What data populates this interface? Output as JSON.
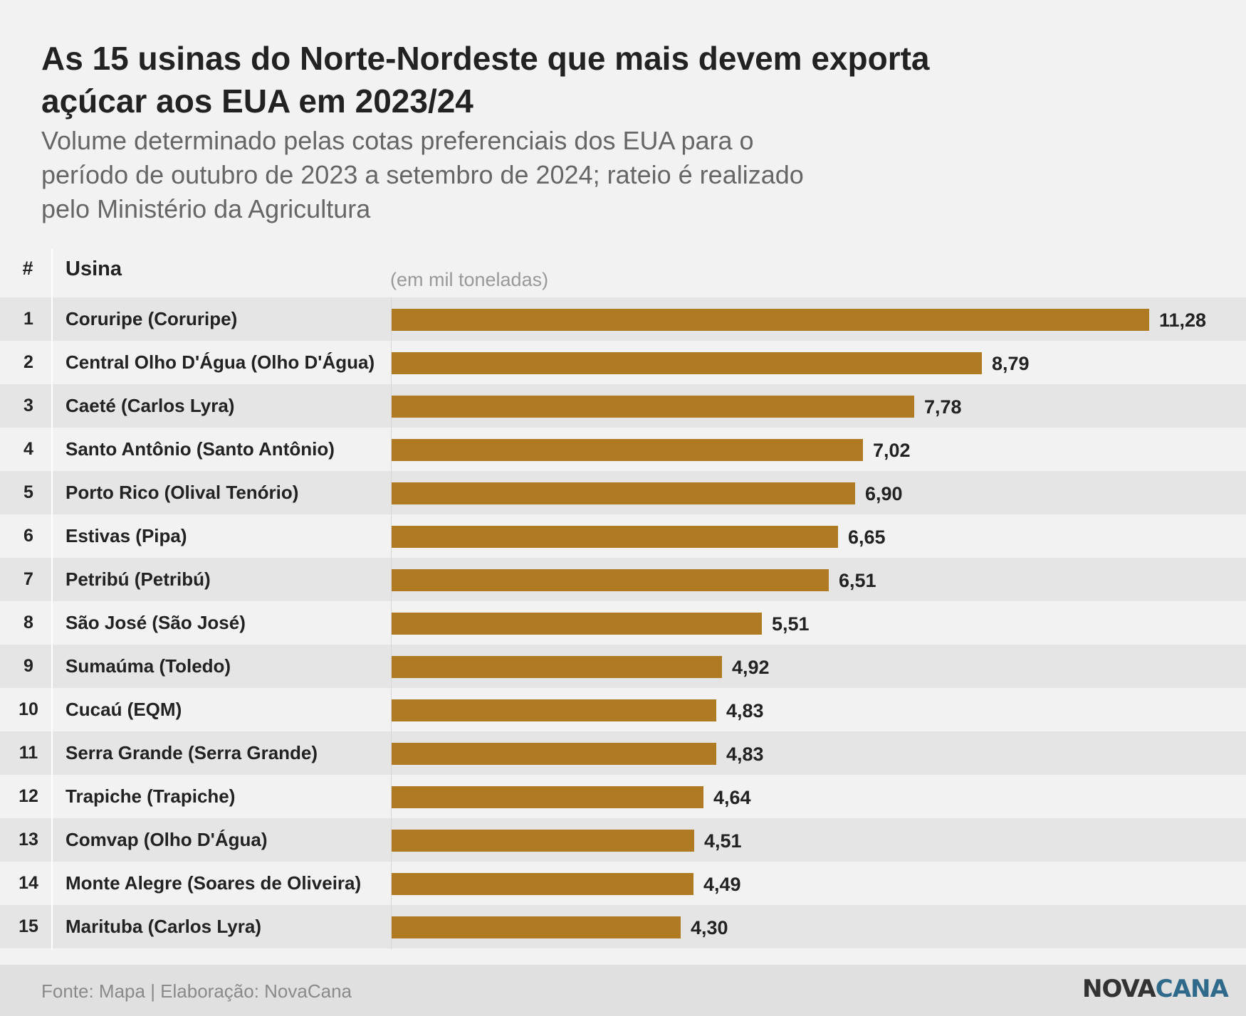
{
  "title_lines": [
    "As 15 usinas do Norte-Nordeste que mais devem exporta",
    "açúcar aos EUA em 2023/24"
  ],
  "subtitle_lines": [
    "Volume determinado pelas cotas preferenciais dos EUA para o",
    "período de outubro de 2023 a setembro de 2024; rateio é realizado",
    "pelo Ministério da Agricultura"
  ],
  "header": {
    "rank": "#",
    "name": "Usina",
    "unit": "(em mil toneladas)"
  },
  "colors": {
    "bar": "#b07a22",
    "logo_nova": "#333333",
    "logo_cana": "#2f6a8a"
  },
  "chart_data": {
    "type": "bar",
    "orientation": "horizontal",
    "title": "As 15 usinas do Norte-Nordeste que mais devem exporta açúcar aos EUA em 2023/24",
    "subtitle": "Volume determinado pelas cotas preferenciais dos EUA para o período de outubro de 2023 a setembro de 2024; rateio é realizado pelo Ministério da Agricultura",
    "unit": "(em mil toneladas)",
    "ranks": [
      "1",
      "2",
      "3",
      "4",
      "5",
      "6",
      "7",
      "8",
      "9",
      "10",
      "11",
      "12",
      "13",
      "14",
      "15"
    ],
    "categories": [
      "Coruripe (Coruripe)",
      "Central Olho D'Água (Olho D'Água)",
      "Caeté (Carlos Lyra)",
      "Santo Antônio (Santo Antônio)",
      "Porto Rico (Olival Tenório)",
      "Estivas (Pipa)",
      "Petribú (Petribú)",
      "São José (São José)",
      "Sumaúma (Toledo)",
      "Cucaú (EQM)",
      "Serra Grande (Serra Grande)",
      "Trapiche (Trapiche)",
      "Comvap (Olho D'Água)",
      "Monte Alegre (Soares de Oliveira)",
      "Marituba (Carlos Lyra)"
    ],
    "values": [
      11.28,
      8.79,
      7.78,
      7.02,
      6.9,
      6.65,
      6.51,
      5.51,
      4.92,
      4.83,
      4.83,
      4.64,
      4.51,
      4.49,
      4.3
    ],
    "labels": [
      "11,28",
      "8,79",
      "7,78",
      "7,02",
      "6,90",
      "6,65",
      "6,51",
      "5,51",
      "4,92",
      "4,83",
      "4,83",
      "4,64",
      "4,51",
      "4,49",
      "4,30"
    ],
    "xlim": [
      0,
      11.28
    ],
    "grid": false,
    "legend": "none"
  },
  "footer": {
    "source": "Fonte: Mapa | Elaboração: NovaCana",
    "logo_a": "NOVA",
    "logo_b": "CANA"
  }
}
